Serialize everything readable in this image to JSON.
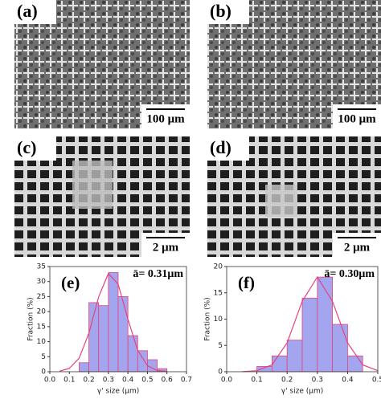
{
  "panels": [
    {
      "label": "(a)",
      "scale": "100 μm"
    },
    {
      "label": "(b)",
      "scale": "100 μm"
    },
    {
      "label": "(c)",
      "scale": "2 μm"
    },
    {
      "label": "(d)",
      "scale": "2 μm"
    }
  ],
  "chart_data": [
    {
      "type": "histogram",
      "label": "(e)",
      "annotation": "ā= 0.31μm",
      "xlabel": "γ' size (μm)",
      "ylabel": "Fraction (%)",
      "bins": [
        0.15,
        0.2,
        0.25,
        0.3,
        0.35,
        0.4,
        0.45,
        0.5,
        0.55,
        0.6
      ],
      "values": [
        3,
        23,
        22,
        33,
        25,
        12,
        7,
        4,
        1
      ],
      "color": "#a3a6ee",
      "edgecolor": "#e8417a",
      "fit": {
        "x": [
          0.05,
          0.1,
          0.15,
          0.2,
          0.25,
          0.3,
          0.35,
          0.4,
          0.45,
          0.5,
          0.55,
          0.6
        ],
        "values": [
          0.2,
          1.1,
          4.5,
          12.8,
          24.9,
          32.7,
          29.1,
          17.5,
          7.1,
          2.0,
          0.4,
          0.1
        ],
        "color": "#e8417a"
      },
      "xlim": [
        0,
        0.7
      ],
      "xticks": [
        {
          "value": 0,
          "label": "0.0"
        },
        0.1,
        0.2,
        0.3,
        0.4,
        0.5,
        0.6,
        0.7
      ],
      "ylim": [
        0,
        35
      ],
      "yticks": [
        0,
        5,
        10,
        15,
        20,
        25,
        30,
        35
      ]
    },
    {
      "type": "histogram",
      "label": "(f)",
      "annotation": "ā= 0.30μm",
      "xlabel": "γ' size (μm)",
      "ylabel": "Fraction (%)",
      "bins": [
        0.1,
        0.15,
        0.2,
        0.25,
        0.3,
        0.35,
        0.4,
        0.45
      ],
      "values": [
        1,
        3,
        6,
        14,
        18,
        9,
        3
      ],
      "color": "#a3a6ee",
      "edgecolor": "#e8417a",
      "fit": {
        "x": [
          0.05,
          0.1,
          0.15,
          0.2,
          0.25,
          0.3,
          0.35,
          0.4,
          0.45,
          0.5
        ],
        "values": [
          0.01,
          0.2,
          1.3,
          5.5,
          13.4,
          18,
          13.4,
          5.5,
          1.3,
          0.2
        ],
        "color": "#e8417a"
      },
      "xlim": [
        0,
        0.5
      ],
      "xticks": [
        {
          "value": 0,
          "label": "0.0"
        },
        0.1,
        0.2,
        0.3,
        0.4,
        0.5
      ],
      "ylim": [
        0,
        20
      ],
      "yticks": [
        0,
        5,
        10,
        15,
        20
      ]
    }
  ]
}
